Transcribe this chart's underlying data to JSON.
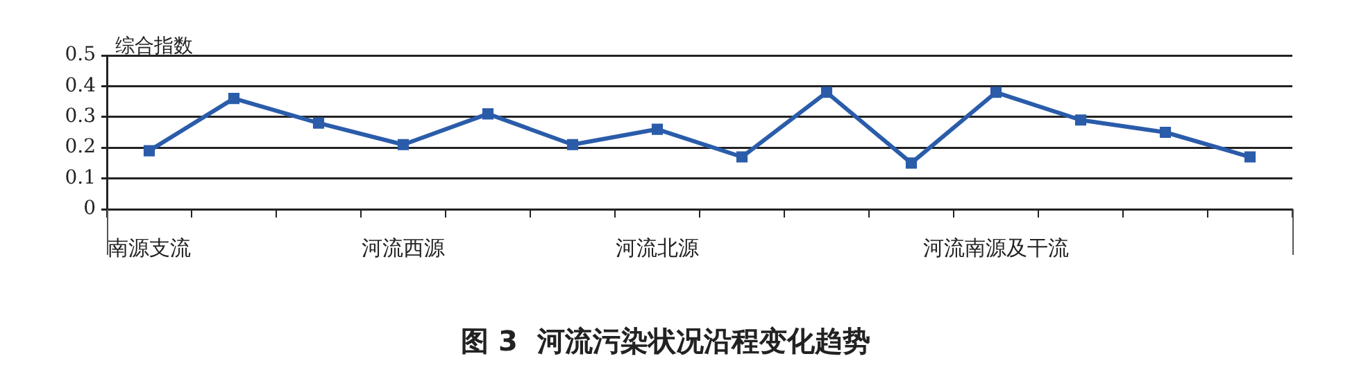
{
  "chart_data": {
    "type": "line",
    "title": "图 3  河流污染状况沿程变化趋势",
    "ylabel": "综合指数",
    "categories": [
      "南源支流",
      null,
      null,
      "河流西源",
      null,
      null,
      "河流北源",
      null,
      null,
      null,
      "河流南源及干流",
      null,
      null,
      null
    ],
    "series": [
      {
        "color": "#2a5caa",
        "values": [
          0.19,
          0.36,
          0.28,
          0.21,
          0.31,
          0.21,
          0.26,
          0.17,
          0.38,
          0.15,
          0.38,
          0.29,
          0.25,
          0.17
        ]
      }
    ],
    "ylim": [
      0,
      0.5
    ],
    "yticks": [
      0,
      0.1,
      0.2,
      0.3,
      0.4,
      0.5
    ],
    "grid": "y",
    "legend": false,
    "marker": "square",
    "line_style": "solid"
  }
}
